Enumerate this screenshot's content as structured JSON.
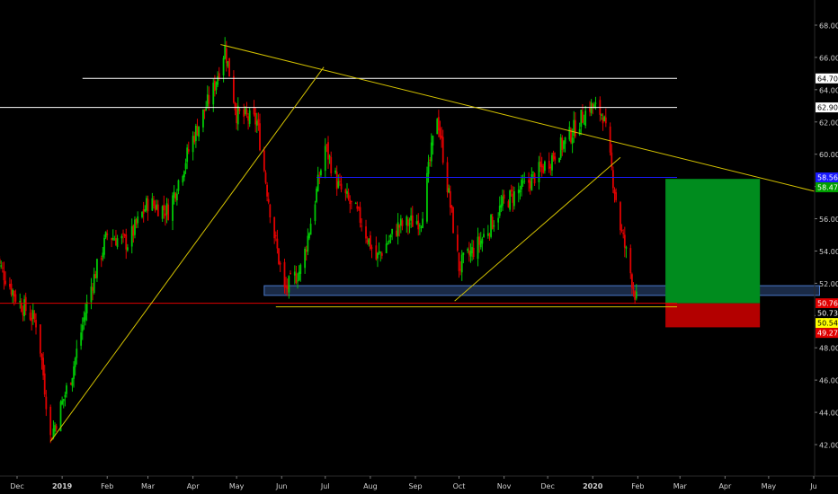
{
  "chart_data": {
    "type": "candlestick",
    "title": "",
    "xlabel": "",
    "ylabel": "",
    "ylim": [
      40.4,
      69.4
    ],
    "x_ticks": [
      "Dec",
      "2019",
      "Feb",
      "Mar",
      "Apr",
      "May",
      "Jun",
      "Jul",
      "Aug",
      "Sep",
      "Oct",
      "Nov",
      "Dec",
      "2020",
      "Feb",
      "Mar",
      "Apr",
      "May",
      "Ju"
    ],
    "x_tick_dates": [
      "2018-12-01",
      "2019-01-01",
      "2019-02-01",
      "2019-03-01",
      "2019-04-01",
      "2019-05-01",
      "2019-06-01",
      "2019-07-01",
      "2019-08-01",
      "2019-09-01",
      "2019-10-01",
      "2019-11-01",
      "2019-12-01",
      "2020-01-01",
      "2020-02-01",
      "2020-03-01",
      "2020-04-01",
      "2020-05-01",
      "2020-06-01"
    ],
    "y_ticks": [
      "42.00",
      "44.00",
      "46.00",
      "48.00",
      "50.00",
      "52.00",
      "54.00",
      "56.00",
      "58.00",
      "60.00",
      "62.00",
      "64.00",
      "66.00",
      "68.00"
    ],
    "price_series": {
      "dates": [
        "2018-11-15",
        "2018-12-01",
        "2018-12-15",
        "2018-12-24",
        "2019-01-08",
        "2019-01-20",
        "2019-02-01",
        "2019-02-15",
        "2019-03-01",
        "2019-03-15",
        "2019-04-01",
        "2019-04-15",
        "2019-04-23",
        "2019-05-01",
        "2019-05-15",
        "2019-05-25",
        "2019-06-03",
        "2019-06-15",
        "2019-07-01",
        "2019-07-10",
        "2019-07-25",
        "2019-08-05",
        "2019-08-20",
        "2019-09-05",
        "2019-09-16",
        "2019-10-01",
        "2019-10-15",
        "2019-11-01",
        "2019-11-15",
        "2019-12-01",
        "2019-12-15",
        "2019-12-30",
        "2020-01-08",
        "2020-01-20",
        "2020-01-31"
      ],
      "close": [
        53.8,
        51.0,
        49.5,
        42.4,
        46.5,
        51.5,
        55.0,
        54.5,
        57.0,
        56.5,
        61.0,
        64.0,
        66.6,
        62.5,
        62.0,
        56.0,
        51.5,
        53.0,
        60.5,
        58.0,
        56.0,
        53.5,
        55.5,
        56.0,
        62.5,
        53.0,
        54.5,
        57.0,
        58.0,
        59.5,
        61.0,
        63.0,
        62.5,
        55.5,
        51.0
      ],
      "color_up": "#00c805",
      "color_down": "#e00000"
    },
    "price_labels": [
      {
        "value": 64.7,
        "text": "64.70",
        "bg": "#ffffff",
        "fg": "#000000"
      },
      {
        "value": 62.9,
        "text": "62.90",
        "bg": "#ffffff",
        "fg": "#000000"
      },
      {
        "value": 58.56,
        "text": "58.56",
        "bg": "#1a1aff",
        "fg": "#ffffff"
      },
      {
        "value": 58.47,
        "text": "58.47",
        "bg": "#00a000",
        "fg": "#ffffff"
      },
      {
        "value": 50.76,
        "text": "50.76",
        "bg": "#e00000",
        "fg": "#ffffff"
      },
      {
        "value": 50.73,
        "text": "50.73",
        "bg": "#000000",
        "fg": "#ffffff"
      },
      {
        "value": 50.54,
        "text": "50.54",
        "bg": "#ffff00",
        "fg": "#000000"
      },
      {
        "value": 49.27,
        "text": "49.27",
        "bg": "#e00000",
        "fg": "#ffffff"
      }
    ],
    "horizontal_levels": [
      {
        "value": 64.7,
        "color": "#ffffff",
        "from": "2019-01-15",
        "to": "2020-02-28"
      },
      {
        "value": 62.9,
        "color": "#ffffff",
        "from": "2018-11-15",
        "to": "2020-02-28"
      },
      {
        "value": 58.56,
        "color": "#1a1aff",
        "from": "2019-06-25",
        "to": "2020-02-28"
      },
      {
        "value": 50.76,
        "color": "#e00000",
        "from": "2018-11-15",
        "to": "2020-02-28"
      },
      {
        "value": 50.54,
        "color": "#d4c200",
        "from": "2019-05-28",
        "to": "2020-02-28"
      }
    ],
    "trend_lines": [
      {
        "from": [
          "2018-12-24",
          42.2
        ],
        "to": [
          "2019-06-30",
          65.4
        ],
        "color": "#d4c200"
      },
      {
        "from": [
          "2019-04-20",
          66.8
        ],
        "to": [
          "2020-06-05",
          57.7
        ],
        "color": "#d4c200"
      },
      {
        "from": [
          "2019-09-28",
          50.9
        ],
        "to": [
          "2020-01-20",
          59.8
        ],
        "color": "#d4c200"
      }
    ],
    "support_zone": {
      "from": "2019-05-20",
      "to": "2020-06-05",
      "low": 51.25,
      "high": 51.85,
      "color": "#4a78c9"
    },
    "position": {
      "entry": 50.76,
      "target": 58.47,
      "stop": 49.27,
      "from": "2020-02-20",
      "to": "2020-04-25",
      "profit_color": "#008c1e",
      "loss_color": "#b30000"
    }
  }
}
